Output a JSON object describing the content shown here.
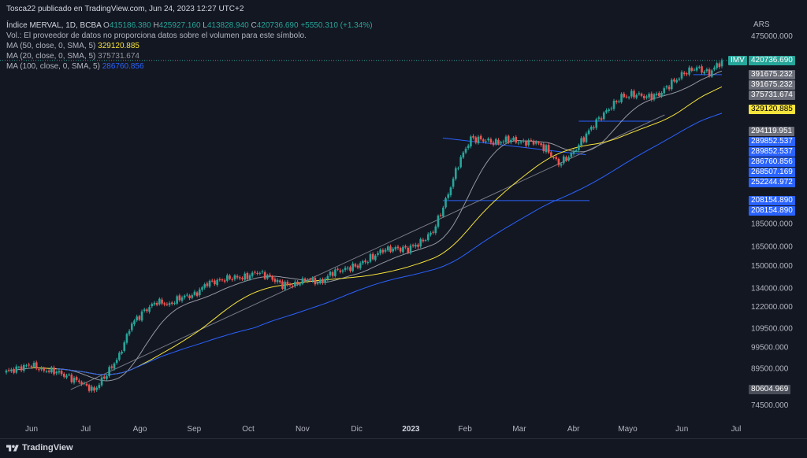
{
  "header": {
    "publisher": "Tosca22 publicado en TradingView.com, Jun 24, 2023 12:27 UTC+2",
    "symbol": "Índice MERVAL, 1D, BCBA",
    "ohlc": {
      "o_label": "O",
      "o": "415186.380",
      "h_label": "H",
      "h": "425927.160",
      "l_label": "L",
      "l": "413828.940",
      "c_label": "C",
      "c": "420736.690",
      "change": "+5550.310 (+1.34%)"
    },
    "volume_note": "Vol.: El proveedor de datos no proporciona datos sobre el volumen para este símbolo.",
    "ma_lines": [
      {
        "label": "MA (50, close, 0, SMA, 5)",
        "value": "329120.885",
        "color": "#f5e33b"
      },
      {
        "label": "MA (20, close, 0, SMA, 5)",
        "value": "375731.674",
        "color": "#9598a1"
      },
      {
        "label": "MA (100, close, 0, SMA, 5)",
        "value": "286760.856",
        "color": "#2962ff"
      }
    ]
  },
  "price_axis": {
    "currency": "ARS",
    "ticks": [
      "475000.000",
      "185000.000",
      "165000.000",
      "150000.000",
      "134000.000",
      "122000.000",
      "109500.000",
      "99500.000",
      "89500.000",
      "74500.000"
    ]
  },
  "time_axis": {
    "ticks": [
      "Jun",
      "Jul",
      "Ago",
      "Sep",
      "Oct",
      "Nov",
      "Dic",
      "2023",
      "Feb",
      "Mar",
      "Abr",
      "Mayo",
      "Jun",
      "Jul"
    ]
  },
  "price_labels": [
    {
      "text": "IMV",
      "value": 420736.69,
      "bg": "#26a69a",
      "fg": "#ffffff"
    },
    {
      "text": "420736.690",
      "value": 420736.69,
      "bg": "#26a69a",
      "fg": "#ffffff"
    },
    {
      "text": "391675.232",
      "value": 391675.232,
      "bg": "#6a6d78",
      "fg": "#ffffff"
    },
    {
      "text": "391675.232",
      "value": 391675.232,
      "bg": "#6a6d78",
      "fg": "#ffffff"
    },
    {
      "text": "375731.674",
      "value": 375731.674,
      "bg": "#6a6d78",
      "fg": "#ffffff"
    },
    {
      "text": "329120.885",
      "value": 329120.885,
      "bg": "#f5e33b",
      "fg": "#000000"
    },
    {
      "text": "294119.951",
      "value": 294119.951,
      "bg": "#6a6d78",
      "fg": "#ffffff"
    },
    {
      "text": "289852.537",
      "value": 289852.537,
      "bg": "#2962ff",
      "fg": "#ffffff"
    },
    {
      "text": "289852.537",
      "value": 289852.537,
      "bg": "#2962ff",
      "fg": "#ffffff"
    },
    {
      "text": "286760.856",
      "value": 286760.856,
      "bg": "#2962ff",
      "fg": "#ffffff"
    },
    {
      "text": "268507.169",
      "value": 268507.169,
      "bg": "#2962ff",
      "fg": "#ffffff"
    },
    {
      "text": "252244.972",
      "value": 252244.972,
      "bg": "#2962ff",
      "fg": "#ffffff"
    },
    {
      "text": "208154.890",
      "value": 208154.89,
      "bg": "#2962ff",
      "fg": "#ffffff"
    },
    {
      "text": "208154.890",
      "value": 208154.89,
      "bg": "#2962ff",
      "fg": "#ffffff"
    },
    {
      "text": "80604.969",
      "value": 80604.969,
      "bg": "#4a4e59",
      "fg": "#ffffff"
    }
  ],
  "footer": {
    "brand": "TradingView"
  },
  "colors": {
    "up": "#26a69a",
    "down": "#ef5350",
    "background": "#131722",
    "trendline": "#2962ff"
  },
  "chart_data": {
    "type": "candlestick",
    "symbol": "Índice MERVAL",
    "interval": "1D",
    "currency": "ARS",
    "scale": "log",
    "ylim": [
      72000,
      500000
    ],
    "last_close": 420736.69,
    "x_axis": [
      "Jun",
      "Jul",
      "Ago",
      "Sep",
      "Oct",
      "Nov",
      "Dic",
      "2023",
      "Feb",
      "Mar",
      "Abr",
      "Mayo",
      "Jun",
      "Jul"
    ],
    "weekly_closes": [
      88000,
      90000,
      91000,
      89000,
      88000,
      86000,
      83000,
      80500,
      87000,
      96000,
      112000,
      120000,
      125000,
      124000,
      128000,
      130000,
      137000,
      140000,
      141000,
      142000,
      145000,
      142000,
      136000,
      137000,
      140000,
      138000,
      145000,
      148000,
      150000,
      156000,
      162000,
      164000,
      163000,
      169000,
      178000,
      208000,
      250000,
      285000,
      282000,
      278000,
      283000,
      279000,
      280000,
      270000,
      250000,
      262000,
      285000,
      310000,
      330000,
      350000,
      355000,
      350000,
      355000,
      375000,
      395000,
      405000,
      395000,
      420000
    ],
    "series": [
      {
        "name": "MA (20, close, 0, SMA, 5)",
        "last": 375731.674
      },
      {
        "name": "MA (50, close, 0, SMA, 5)",
        "last": 329120.885
      },
      {
        "name": "MA (100, close, 0, SMA, 5)",
        "last": 286760.856
      }
    ],
    "horizontal_levels": [
      391675.232,
      294119.951,
      289852.537,
      208154.89
    ],
    "grid": false
  }
}
